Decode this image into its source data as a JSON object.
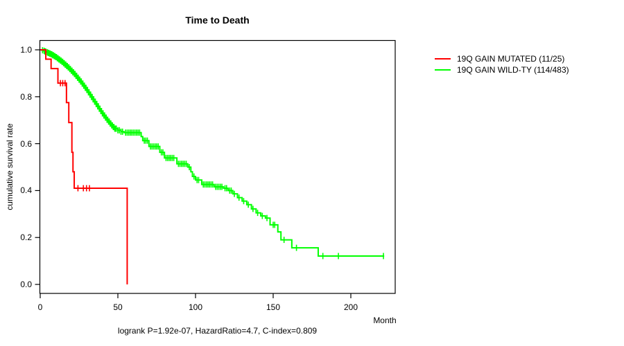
{
  "background": "#ffffff",
  "chart_data": {
    "type": "line",
    "subtype": "kaplan-meier-step-curve",
    "title": "Time to Death",
    "xlabel": "Month",
    "ylabel": "cumulative survival rate",
    "footer": "logrank P=1.92e-07, HazardRatio=4.7, C-index=0.809",
    "xticks": [
      0,
      50,
      100,
      150,
      200
    ],
    "yticks": [
      "0.0",
      "0.2",
      "0.4",
      "0.6",
      "0.8",
      "1.0"
    ],
    "xlim": [
      0,
      228
    ],
    "ylim": [
      -0.04,
      1.04
    ],
    "grid": false,
    "legend_position": "right-outside",
    "axis_color": "#000000",
    "series": [
      {
        "name": "19Q GAIN MUTATED (11/25)",
        "color": "#ff0000",
        "end": 56,
        "steps": [
          [
            0,
            1.0
          ],
          [
            3.6,
            0.96
          ],
          [
            7,
            0.92
          ],
          [
            11.4,
            0.858
          ],
          [
            16.9,
            0.775
          ],
          [
            18.4,
            0.69
          ],
          [
            20.4,
            0.563
          ],
          [
            21.1,
            0.48
          ],
          [
            21.9,
            0.41
          ],
          [
            56,
            0.0
          ]
        ],
        "censor_times": [
          13,
          14.5,
          16,
          24.3,
          27.8,
          29.8,
          31.7
        ]
      },
      {
        "name": "19Q GAIN WILD-TY (114/483)",
        "color": "#00ff00",
        "end": 221.5,
        "steps": [
          [
            0,
            1.0
          ],
          [
            1,
            0.998
          ],
          [
            2,
            0.996
          ],
          [
            3,
            0.993
          ],
          [
            4,
            0.99
          ],
          [
            5,
            0.987
          ],
          [
            6,
            0.984
          ],
          [
            7,
            0.981
          ],
          [
            8,
            0.977
          ],
          [
            9,
            0.973
          ],
          [
            10,
            0.969
          ],
          [
            11,
            0.964
          ],
          [
            12,
            0.959
          ],
          [
            13,
            0.954
          ],
          [
            14,
            0.949
          ],
          [
            15,
            0.943
          ],
          [
            16,
            0.937
          ],
          [
            17,
            0.931
          ],
          [
            18,
            0.925
          ],
          [
            19,
            0.918
          ],
          [
            20,
            0.911
          ],
          [
            21,
            0.904
          ],
          [
            22,
            0.897
          ],
          [
            23,
            0.889
          ],
          [
            24,
            0.881
          ],
          [
            25,
            0.873
          ],
          [
            26,
            0.865
          ],
          [
            27,
            0.856
          ],
          [
            28,
            0.847
          ],
          [
            29,
            0.838
          ],
          [
            30,
            0.829
          ],
          [
            31,
            0.819
          ],
          [
            32,
            0.809
          ],
          [
            33,
            0.799
          ],
          [
            34,
            0.789
          ],
          [
            35,
            0.779
          ],
          [
            36,
            0.769
          ],
          [
            37,
            0.759
          ],
          [
            38,
            0.749
          ],
          [
            39,
            0.739
          ],
          [
            40,
            0.729
          ],
          [
            41,
            0.72
          ],
          [
            42,
            0.711
          ],
          [
            43,
            0.702
          ],
          [
            44,
            0.694
          ],
          [
            45,
            0.686
          ],
          [
            46,
            0.678
          ],
          [
            47,
            0.671
          ],
          [
            48,
            0.664
          ],
          [
            50,
            0.657
          ],
          [
            52,
            0.651
          ],
          [
            54,
            0.647
          ],
          [
            65,
            0.63
          ],
          [
            66,
            0.613
          ],
          [
            70,
            0.588
          ],
          [
            77,
            0.563
          ],
          [
            80,
            0.539
          ],
          [
            88,
            0.514
          ],
          [
            95,
            0.5
          ],
          [
            97,
            0.48
          ],
          [
            98,
            0.46
          ],
          [
            100,
            0.445
          ],
          [
            104,
            0.426
          ],
          [
            112,
            0.416
          ],
          [
            118,
            0.41
          ],
          [
            121,
            0.4
          ],
          [
            124,
            0.386
          ],
          [
            127,
            0.37
          ],
          [
            130,
            0.355
          ],
          [
            133,
            0.34
          ],
          [
            136,
            0.322
          ],
          [
            139,
            0.305
          ],
          [
            142,
            0.292
          ],
          [
            145,
            0.283
          ],
          [
            148,
            0.254
          ],
          [
            153,
            0.224
          ],
          [
            155,
            0.19
          ],
          [
            162,
            0.156
          ],
          [
            179,
            0.121
          ]
        ],
        "censor_times": [
          1.5,
          2.5,
          3,
          3.5,
          4.5,
          5,
          5.5,
          6,
          6.5,
          7,
          7.5,
          8,
          8.5,
          9,
          9.5,
          10,
          10.5,
          11,
          11.5,
          12,
          12.5,
          13,
          13.5,
          14,
          14.5,
          15,
          15.5,
          16,
          16.5,
          17,
          17.5,
          18,
          18.5,
          19,
          19.5,
          20,
          20.5,
          21,
          21.5,
          22,
          22.5,
          23,
          23.5,
          24,
          24.5,
          25,
          25.5,
          26,
          26.5,
          27,
          27.5,
          28,
          28.5,
          29,
          29.5,
          30,
          30.5,
          31,
          31.5,
          32,
          32.5,
          33,
          33.5,
          34,
          34.5,
          35,
          35.5,
          36,
          36.5,
          37,
          37.5,
          38,
          38.5,
          39,
          39.5,
          40,
          40.5,
          41,
          41.5,
          42,
          42.5,
          43,
          43.5,
          44,
          44.5,
          45,
          45.5,
          46,
          46.5,
          47,
          47.5,
          48,
          48.5,
          49,
          50,
          51,
          52,
          53,
          55,
          56,
          57,
          58,
          59,
          60,
          61,
          62,
          63,
          64,
          67,
          68,
          69,
          71,
          72,
          73,
          74,
          75,
          76,
          78,
          79,
          81,
          82,
          83,
          84,
          85,
          86,
          89,
          90,
          91,
          92,
          93,
          94,
          96,
          99,
          101,
          102,
          105,
          106,
          107,
          108,
          109,
          110,
          111,
          113,
          114,
          115,
          116,
          117,
          119,
          120,
          122,
          123,
          125,
          128,
          131,
          134,
          137,
          140,
          143,
          146,
          150,
          151,
          157,
          165,
          182,
          192,
          221
        ]
      }
    ]
  }
}
